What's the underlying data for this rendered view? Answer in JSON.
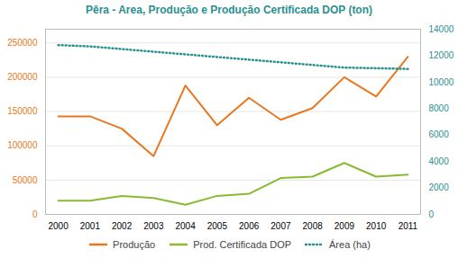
{
  "chart_data": {
    "type": "line",
    "title": "Pêra - Area, Produção e Produção Certificada DOP (ton)",
    "x": [
      2000,
      2001,
      2002,
      2003,
      2004,
      2005,
      2006,
      2007,
      2008,
      2009,
      2010,
      2011
    ],
    "series": [
      {
        "name": "Produção",
        "color": "#E87820",
        "values": [
          143000,
          143000,
          125000,
          85000,
          188000,
          130000,
          170000,
          138000,
          155000,
          200000,
          172000,
          230000
        ]
      },
      {
        "name": "Prod. Certificada DOP",
        "color": "#88BB30",
        "values": [
          20000,
          20000,
          27000,
          24000,
          14000,
          27000,
          30000,
          53000,
          55000,
          75000,
          55000,
          58000
        ]
      },
      {
        "name": "Área (ha)",
        "color": "#2A9090",
        "axis": "y2",
        "line_style": "dotted",
        "values": [
          12800,
          12700,
          12500,
          12300,
          12100,
          11900,
          11700,
          11500,
          11300,
          11100,
          11050,
          11000
        ]
      }
    ],
    "xlim": [
      1999.6,
      2011.4
    ],
    "xticks": [
      2000,
      2001,
      2002,
      2003,
      2004,
      2005,
      2006,
      2007,
      2008,
      2009,
      2010,
      2011
    ],
    "ylim": [
      0,
      270000
    ],
    "yticks": [
      0,
      50000,
      100000,
      150000,
      200000,
      250000
    ],
    "y2lim": [
      0,
      14000
    ],
    "y2ticks": [
      0,
      2000,
      4000,
      6000,
      8000,
      10000,
      12000,
      14000
    ],
    "grid": true,
    "legend": "bottom"
  }
}
